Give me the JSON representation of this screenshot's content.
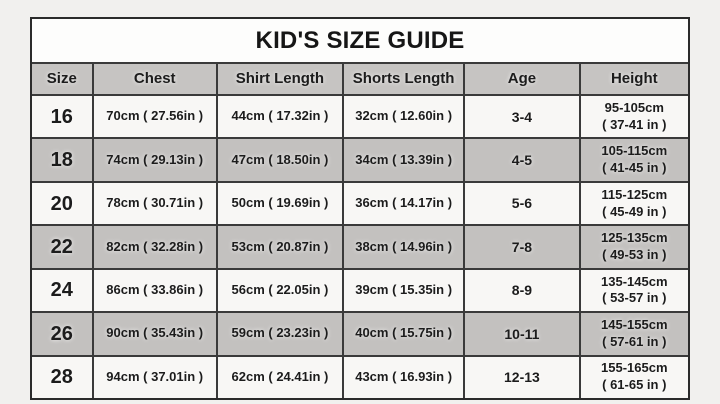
{
  "page": {
    "colors": {
      "background": "#f1f0ee",
      "title_bg": "#fdfdfc",
      "header_bg": "#c6c4c2",
      "stripe_bg": "#c3c1bf",
      "light_row_bg": "#f8f7f5",
      "border": "#3a3a3a",
      "text": "#1c1c1c"
    }
  },
  "chart_data": {
    "type": "table",
    "title": "KID'S SIZE GUIDE",
    "columns": [
      "Size",
      "Chest",
      "Shirt Length",
      "Shorts Length",
      "Age",
      "Height"
    ],
    "rows": [
      {
        "size": "16",
        "chest": "70cm ( 27.56in )",
        "shirt": "44cm ( 17.32in )",
        "shorts": "32cm ( 12.60in )",
        "age": "3-4",
        "height_cm": "95-105cm",
        "height_in": "( 37-41 in )"
      },
      {
        "size": "18",
        "chest": "74cm ( 29.13in )",
        "shirt": "47cm ( 18.50in )",
        "shorts": "34cm ( 13.39in )",
        "age": "4-5",
        "height_cm": "105-115cm",
        "height_in": "( 41-45 in )"
      },
      {
        "size": "20",
        "chest": "78cm ( 30.71in )",
        "shirt": "50cm ( 19.69in )",
        "shorts": "36cm ( 14.17in )",
        "age": "5-6",
        "height_cm": "115-125cm",
        "height_in": "( 45-49 in )"
      },
      {
        "size": "22",
        "chest": "82cm ( 32.28in )",
        "shirt": "53cm ( 20.87in )",
        "shorts": "38cm ( 14.96in )",
        "age": "7-8",
        "height_cm": "125-135cm",
        "height_in": "( 49-53 in )"
      },
      {
        "size": "24",
        "chest": "86cm ( 33.86in )",
        "shirt": "56cm ( 22.05in )",
        "shorts": "39cm ( 15.35in )",
        "age": "8-9",
        "height_cm": "135-145cm",
        "height_in": "( 53-57 in )"
      },
      {
        "size": "26",
        "chest": "90cm ( 35.43in )",
        "shirt": "59cm ( 23.23in )",
        "shorts": "40cm ( 15.75in )",
        "age": "10-11",
        "height_cm": "145-155cm",
        "height_in": "( 57-61 in )"
      },
      {
        "size": "28",
        "chest": "94cm ( 37.01in )",
        "shirt": "62cm ( 24.41in )",
        "shorts": "43cm ( 16.93in )",
        "age": "12-13",
        "height_cm": "155-165cm",
        "height_in": "( 61-65 in )"
      }
    ]
  }
}
